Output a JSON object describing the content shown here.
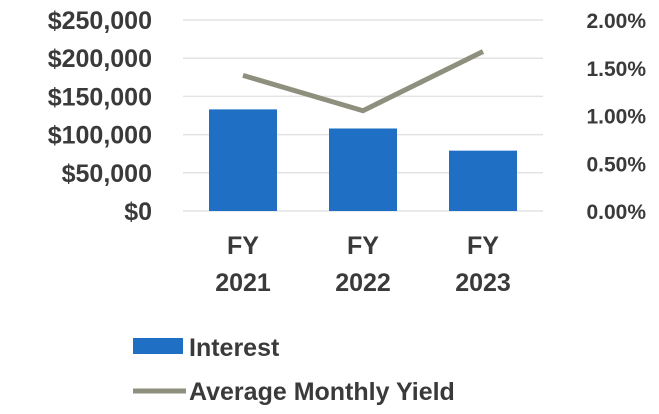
{
  "chart_data": {
    "type": "bar",
    "categories": [
      [
        "FY",
        "2021"
      ],
      [
        "FY",
        "2022"
      ],
      [
        "FY",
        "2023"
      ]
    ],
    "series": [
      {
        "name": "Interest",
        "type": "bar",
        "axis": "left",
        "color": "#1f6fc5",
        "values": [
          133000,
          108000,
          79000
        ]
      },
      {
        "name": "Average Monthly Yield",
        "type": "line",
        "axis": "right",
        "color": "#8f8f7e",
        "values": [
          1.42,
          1.05,
          1.67
        ]
      }
    ],
    "y_left": {
      "ylim": [
        0,
        250000
      ],
      "ticks": [
        0,
        50000,
        100000,
        150000,
        200000,
        250000
      ],
      "tick_labels": [
        "$0",
        "$50,000",
        "$100,000",
        "$150,000",
        "$200,000",
        "$250,000"
      ]
    },
    "y_right": {
      "ylim": [
        0,
        2.0
      ],
      "ticks": [
        0,
        0.5,
        1.0,
        1.5,
        2.0
      ],
      "tick_labels": [
        "0.00%",
        "0.50%",
        "1.00%",
        "1.50%",
        "2.00%"
      ]
    },
    "grid": true,
    "legend": "bottom"
  }
}
